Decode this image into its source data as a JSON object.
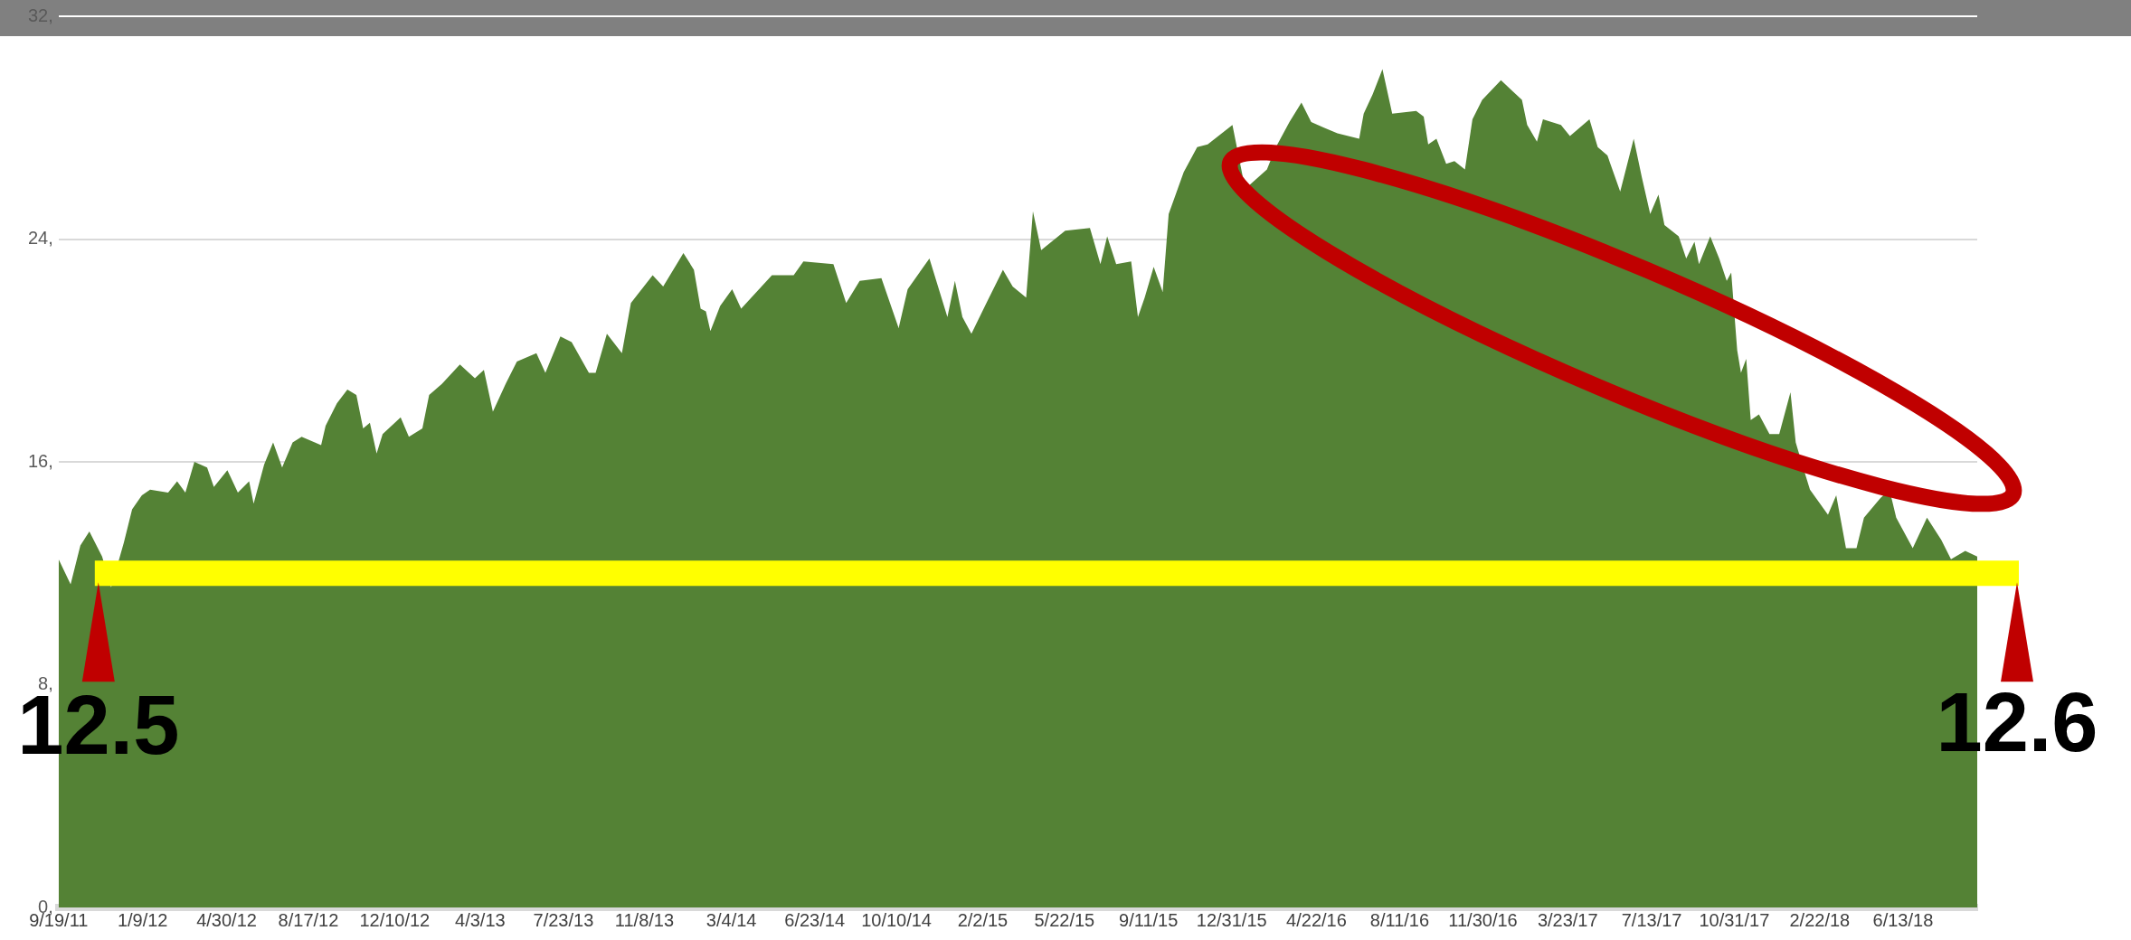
{
  "chart_data": {
    "type": "area",
    "color": "#548235",
    "x": [
      "2011-09-19",
      "2011-10-05",
      "2011-10-18",
      "2011-10-30",
      "2011-11-16",
      "2011-11-28",
      "2011-12-15",
      "2011-12-26",
      "2012-01-08",
      "2012-01-19",
      "2012-02-12",
      "2012-02-24",
      "2012-03-06",
      "2012-03-18",
      "2012-04-04",
      "2012-04-13",
      "2012-05-01",
      "2012-05-15",
      "2012-05-30",
      "2012-06-05",
      "2012-06-19",
      "2012-07-01",
      "2012-07-13",
      "2012-07-27",
      "2012-08-08",
      "2012-09-03",
      "2012-09-09",
      "2012-09-24",
      "2012-10-08",
      "2012-10-20",
      "2012-10-29",
      "2012-11-07",
      "2012-11-16",
      "2012-11-24",
      "2012-12-18",
      "2012-12-29",
      "2013-01-16",
      "2013-01-25",
      "2013-02-11",
      "2013-03-07",
      "2013-03-27",
      "2013-04-08",
      "2013-04-20",
      "2013-05-07",
      "2013-05-22",
      "2013-06-17",
      "2013-06-29",
      "2013-07-19",
      "2013-08-03",
      "2013-08-26",
      "2013-09-04",
      "2013-09-19",
      "2013-10-09",
      "2013-10-21",
      "2013-11-19",
      "2013-12-03",
      "2013-12-30",
      "2014-01-13",
      "2014-01-22",
      "2014-01-29",
      "2014-02-04",
      "2014-02-17",
      "2014-03-05",
      "2014-03-17",
      "2014-04-27",
      "2014-05-26",
      "2014-06-08",
      "2014-07-18",
      "2014-08-04",
      "2014-08-22",
      "2014-09-20",
      "2014-10-13",
      "2014-10-25",
      "2014-11-23",
      "2014-12-17",
      "2014-12-27",
      "2015-01-06",
      "2015-01-18",
      "2015-02-07",
      "2015-03-01",
      "2015-03-14",
      "2015-04-01",
      "2015-04-10",
      "2015-04-21",
      "2015-05-23",
      "2015-06-25",
      "2015-07-09",
      "2015-07-18",
      "2015-07-30",
      "2015-08-19",
      "2015-08-28",
      "2015-09-06",
      "2015-09-18",
      "2015-09-30",
      "2015-10-08",
      "2015-10-20",
      "2015-10-28",
      "2015-11-15",
      "2015-11-29",
      "2016-01-01",
      "2016-01-18",
      "2016-02-16",
      "2016-02-28",
      "2016-03-17",
      "2016-04-02",
      "2016-04-15",
      "2016-05-02",
      "2016-05-20",
      "2016-06-18",
      "2016-06-24",
      "2016-07-06",
      "2016-07-19",
      "2016-08-01",
      "2016-09-02",
      "2016-09-12",
      "2016-09-18",
      "2016-09-29",
      "2016-10-12",
      "2016-10-23",
      "2016-11-06",
      "2016-11-16",
      "2016-11-29",
      "2016-12-24",
      "2017-01-09",
      "2017-01-21",
      "2017-01-28",
      "2017-02-10",
      "2017-02-18",
      "2017-03-14",
      "2017-03-26",
      "2017-04-21",
      "2017-05-02",
      "2017-05-15",
      "2017-06-01",
      "2017-06-19",
      "2017-06-30",
      "2017-07-11",
      "2017-07-22",
      "2017-07-30",
      "2017-08-18",
      "2017-08-28",
      "2017-09-08",
      "2017-09-14",
      "2017-09-29",
      "2017-10-11",
      "2017-10-21",
      "2017-10-27",
      "2017-11-04",
      "2017-11-09",
      "2017-11-16",
      "2017-11-22",
      "2017-12-03",
      "2017-12-17",
      "2017-12-30",
      "2018-01-14",
      "2018-01-21",
      "2018-02-01",
      "2018-02-09",
      "2018-03-05",
      "2018-03-16",
      "2018-03-29",
      "2018-04-12",
      "2018-04-22",
      "2018-05-14",
      "2018-05-26",
      "2018-06-04",
      "2018-06-26",
      "2018-07-15",
      "2018-08-03",
      "2018-08-16",
      "2018-09-04",
      "2018-09-20"
    ],
    "values": [
      12.5,
      11.6,
      13.0,
      13.5,
      12.6,
      11.5,
      13.1,
      14.3,
      14.8,
      15.0,
      14.9,
      15.3,
      14.9,
      16.0,
      15.8,
      15.1,
      15.7,
      14.9,
      15.3,
      14.5,
      15.9,
      16.7,
      15.8,
      16.7,
      16.9,
      16.6,
      17.3,
      18.1,
      18.6,
      18.4,
      17.2,
      17.4,
      16.3,
      17.0,
      17.6,
      16.9,
      17.2,
      18.4,
      18.8,
      19.5,
      19.0,
      19.3,
      17.8,
      18.8,
      19.6,
      19.9,
      19.2,
      20.5,
      20.3,
      19.2,
      19.2,
      20.6,
      19.9,
      21.7,
      22.7,
      22.3,
      23.5,
      22.9,
      21.5,
      21.4,
      20.7,
      21.6,
      22.2,
      21.5,
      22.7,
      22.7,
      23.2,
      23.1,
      21.7,
      22.5,
      22.6,
      20.8,
      22.2,
      23.3,
      21.2,
      22.5,
      21.2,
      20.6,
      21.7,
      22.9,
      22.3,
      21.9,
      25.0,
      23.6,
      24.3,
      24.4,
      23.1,
      24.1,
      23.1,
      23.2,
      21.2,
      21.9,
      23.0,
      22.1,
      24.9,
      25.8,
      26.4,
      27.3,
      27.4,
      28.1,
      25.8,
      26.5,
      27.3,
      28.2,
      28.9,
      28.2,
      28.0,
      27.8,
      27.6,
      28.5,
      29.2,
      30.1,
      28.5,
      28.6,
      28.4,
      27.4,
      27.6,
      26.7,
      26.8,
      26.5,
      28.3,
      29.0,
      29.7,
      29.3,
      29.0,
      28.1,
      27.5,
      28.3,
      28.1,
      27.7,
      28.3,
      27.3,
      27.0,
      25.7,
      27.6,
      26.2,
      24.9,
      25.6,
      24.5,
      24.1,
      23.3,
      23.9,
      23.1,
      24.1,
      23.3,
      22.5,
      22.8,
      20.0,
      19.2,
      19.7,
      17.5,
      17.7,
      17.0,
      17.0,
      18.5,
      16.7,
      15.7,
      15.0,
      14.1,
      14.8,
      12.9,
      12.9,
      14.0,
      14.7,
      15.0,
      14.0,
      12.9,
      14.0,
      13.2,
      12.5,
      12.8,
      12.6
    ],
    "xlim": [
      "2011-09-19",
      "2018-09-20"
    ],
    "xticks": [
      {
        "value": "2011-09-19",
        "label": "9/19/11"
      },
      {
        "value": "2012-01-09",
        "label": "1/9/12"
      },
      {
        "value": "2012-04-30",
        "label": "4/30/12"
      },
      {
        "value": "2012-08-17",
        "label": "8/17/12"
      },
      {
        "value": "2012-12-10",
        "label": "12/10/12"
      },
      {
        "value": "2013-04-03",
        "label": "4/3/13"
      },
      {
        "value": "2013-07-23",
        "label": "7/23/13"
      },
      {
        "value": "2013-11-08",
        "label": "11/8/13"
      },
      {
        "value": "2014-03-04",
        "label": "3/4/14"
      },
      {
        "value": "2014-06-23",
        "label": "6/23/14"
      },
      {
        "value": "2014-10-10",
        "label": "10/10/14"
      },
      {
        "value": "2015-02-02",
        "label": "2/2/15"
      },
      {
        "value": "2015-05-22",
        "label": "5/22/15"
      },
      {
        "value": "2015-09-11",
        "label": "9/11/15"
      },
      {
        "value": "2015-12-31",
        "label": "12/31/15"
      },
      {
        "value": "2016-04-22",
        "label": "4/22/16"
      },
      {
        "value": "2016-08-11",
        "label": "8/11/16"
      },
      {
        "value": "2016-11-30",
        "label": "11/30/16"
      },
      {
        "value": "2017-03-23",
        "label": "3/23/17"
      },
      {
        "value": "2017-07-13",
        "label": "7/13/17"
      },
      {
        "value": "2017-10-31",
        "label": "10/31/17"
      },
      {
        "value": "2018-02-22",
        "label": "2/22/18"
      },
      {
        "value": "2018-06-13",
        "label": "6/13/18"
      }
    ],
    "ylim": [
      0,
      32
    ],
    "yticks": [
      {
        "value": 0,
        "label": "0,"
      },
      {
        "value": 8,
        "label": "8,"
      },
      {
        "value": 16,
        "label": "16,"
      },
      {
        "value": 24,
        "label": "24,"
      },
      {
        "value": 32,
        "label": "32,"
      }
    ],
    "grid": "y",
    "ref_lines": [
      {
        "axis": "y",
        "value": 12,
        "color": "#ffff00"
      }
    ],
    "annotations": [
      {
        "text": "12.5",
        "x": "2011-09-19",
        "y": 12.5
      },
      {
        "text": "12.6",
        "x": "2018-09-20",
        "y": 12.6
      }
    ]
  }
}
